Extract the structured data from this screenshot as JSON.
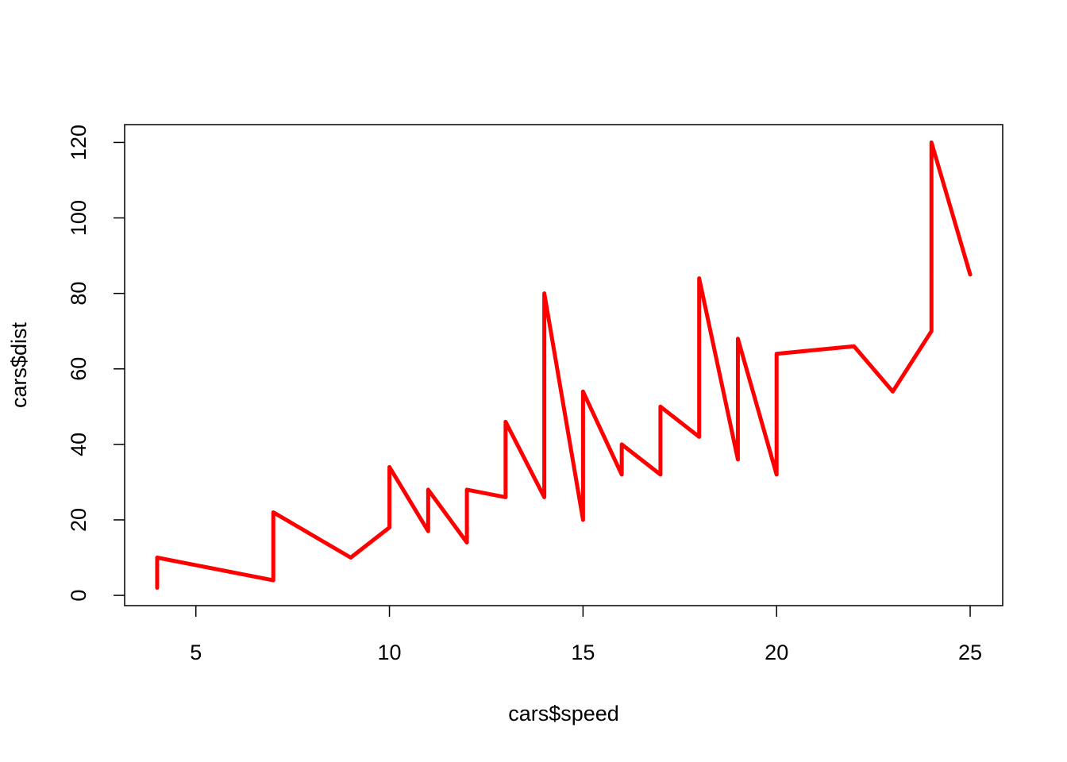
{
  "chart_data": {
    "type": "line",
    "x_label": "cars$speed",
    "y_label": "cars$dist",
    "x": [
      4,
      4,
      7,
      7,
      8,
      9,
      10,
      10,
      10,
      11,
      11,
      12,
      12,
      12,
      12,
      13,
      13,
      13,
      13,
      14,
      14,
      14,
      14,
      15,
      15,
      15,
      16,
      16,
      17,
      17,
      17,
      18,
      18,
      18,
      18,
      19,
      19,
      19,
      20,
      20,
      20,
      20,
      20,
      22,
      23,
      24,
      24,
      24,
      24,
      25
    ],
    "values": [
      2,
      10,
      4,
      22,
      16,
      10,
      18,
      26,
      34,
      17,
      28,
      14,
      20,
      24,
      28,
      26,
      34,
      34,
      46,
      26,
      36,
      60,
      80,
      20,
      26,
      54,
      32,
      40,
      32,
      40,
      50,
      42,
      56,
      76,
      84,
      36,
      46,
      68,
      32,
      48,
      52,
      56,
      64,
      66,
      54,
      70,
      92,
      93,
      120,
      85
    ],
    "color": "#ff0000",
    "xlim": [
      3.16,
      25.84
    ],
    "ylim": [
      -2.72,
      124.72
    ],
    "xticks": [
      5,
      10,
      15,
      20,
      25
    ],
    "yticks": [
      0,
      20,
      40,
      60,
      80,
      100,
      120
    ],
    "grid": false
  }
}
